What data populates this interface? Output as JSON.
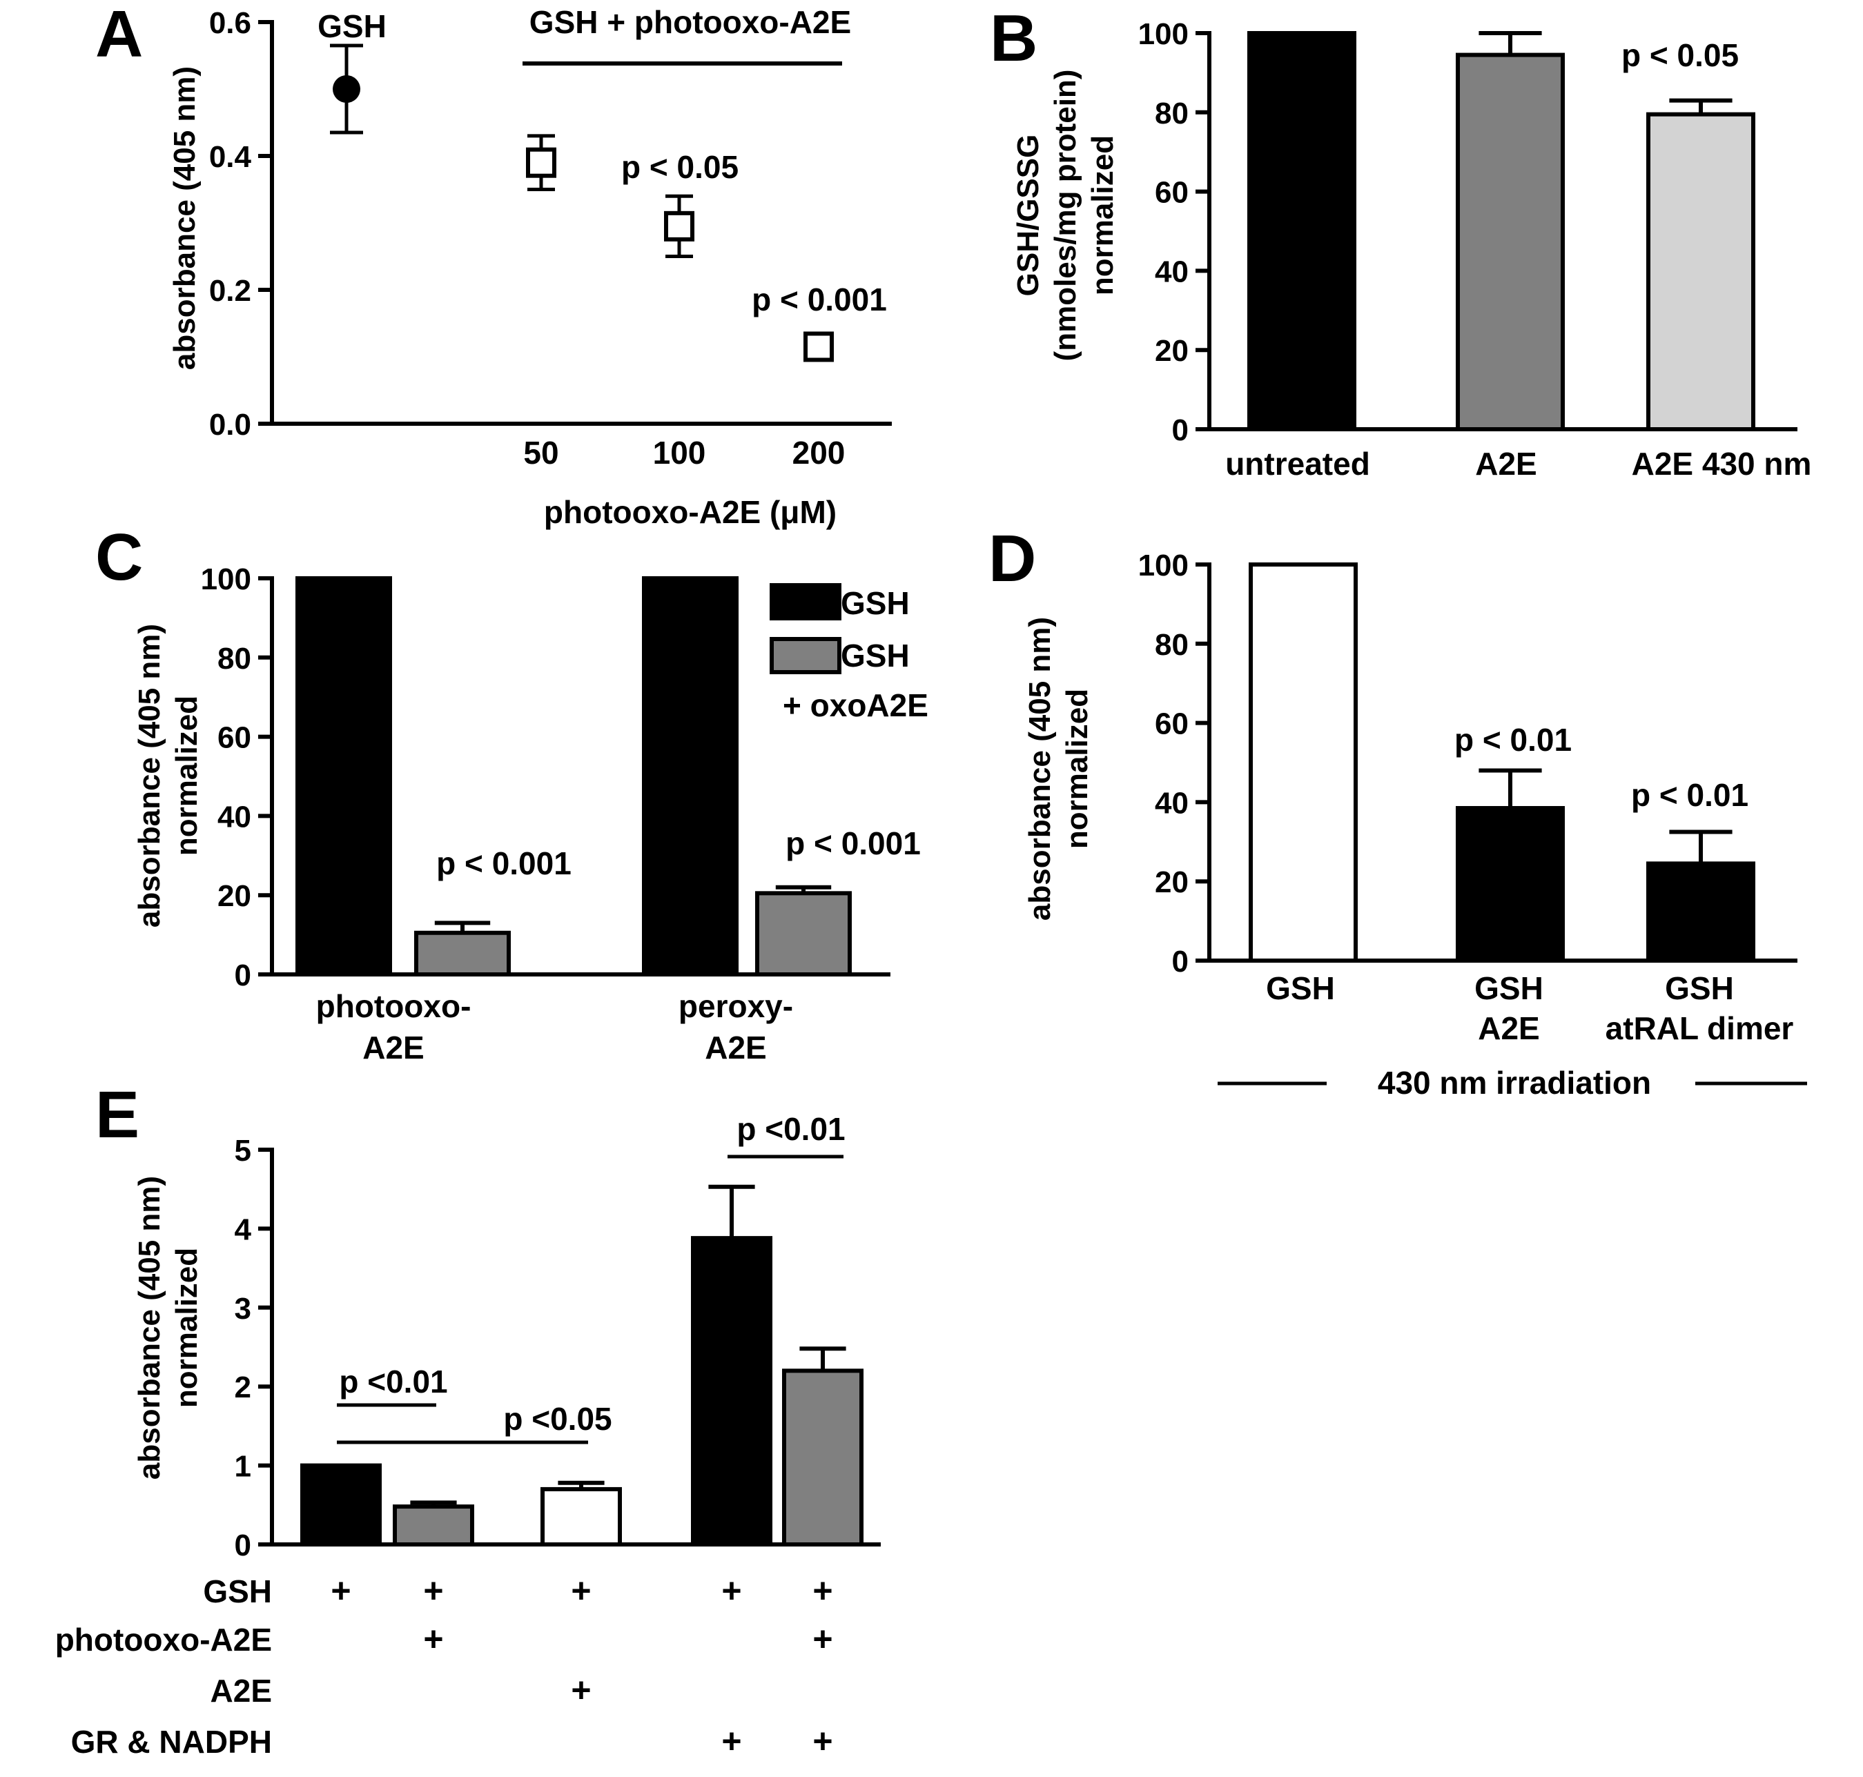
{
  "colors": {
    "black": "#000000",
    "dark_gray": "#808080",
    "light_gray": "#d3d3d3",
    "white": "#ffffff"
  },
  "chart_data": [
    {
      "panel": "A",
      "type": "scatter",
      "ylabel": "absorbance (405 nm)",
      "xlabel": "photooxo-A2E (μM)",
      "ylim": [
        0,
        0.6
      ],
      "yticks": [
        "0.0",
        "0.2",
        "0.4",
        "0.6"
      ],
      "group_label": "GSH + photooxo-A2E",
      "points": [
        {
          "label": "GSH",
          "y": 0.5,
          "err": 0.065,
          "marker": "filled-circle"
        },
        {
          "label": "50",
          "y": 0.39,
          "err": 0.04,
          "marker": "open-square"
        },
        {
          "label": "100",
          "y": 0.295,
          "err": 0.045,
          "marker": "open-square"
        },
        {
          "label": "200",
          "y": 0.115,
          "err": 0.01,
          "marker": "open-square"
        }
      ],
      "annotations": [
        "p < 0.05",
        "p < 0.001"
      ]
    },
    {
      "panel": "B",
      "type": "bar",
      "ylabel_lines": [
        "GSH/GSSG",
        "(nmoles/mg protein)",
        "normalized"
      ],
      "ylim": [
        0,
        100
      ],
      "yticks": [
        "0",
        "20",
        "40",
        "60",
        "80",
        "100"
      ],
      "categories": [
        "untreated",
        "A2E",
        "A2E 430 nm"
      ],
      "values": [
        100,
        94.5,
        79.5
      ],
      "errors": [
        0,
        5.5,
        3.5
      ],
      "colors": [
        "#000000",
        "#808080",
        "#d3d3d3"
      ],
      "annotations": [
        "p < 0.05"
      ]
    },
    {
      "panel": "C",
      "type": "bar",
      "ylabel_lines": [
        "absorbance (405  nm)",
        "normalized"
      ],
      "ylim": [
        0,
        100
      ],
      "yticks": [
        "0",
        "20",
        "40",
        "60",
        "80",
        "100"
      ],
      "categories": [
        [
          "photooxo-",
          "A2E"
        ],
        [
          "peroxy-",
          "A2E"
        ]
      ],
      "series": [
        {
          "name": "GSH",
          "values": [
            100,
            100
          ],
          "errors": [
            0,
            0
          ],
          "color": "#000000"
        },
        {
          "name": "GSH + oxoA2E",
          "name_lines": [
            "GSH",
            "+ oxoA2E"
          ],
          "values": [
            10.5,
            20.5
          ],
          "errors": [
            2.5,
            1.5
          ],
          "color": "#808080"
        }
      ],
      "annotations": [
        "p < 0.001",
        "p < 0.001"
      ]
    },
    {
      "panel": "D",
      "type": "bar",
      "ylabel_lines": [
        "absorbance (405 nm)",
        "normalized"
      ],
      "ylim": [
        0,
        100
      ],
      "yticks": [
        "0",
        "20",
        "40",
        "60",
        "80",
        "100"
      ],
      "categories": [
        [
          "GSH"
        ],
        [
          "GSH",
          "A2E"
        ],
        [
          "GSH",
          "atRAL dimer"
        ]
      ],
      "values": [
        100,
        38.5,
        24.5
      ],
      "errors": [
        0,
        9.5,
        8
      ],
      "colors": [
        "#ffffff",
        "#000000",
        "#000000"
      ],
      "annotations": [
        "p < 0.01",
        "p < 0.01"
      ],
      "footer": "430 nm irradiation"
    },
    {
      "panel": "E",
      "type": "bar",
      "ylabel_lines": [
        "absorbance (405 nm)",
        "normalized"
      ],
      "ylim": [
        0,
        5
      ],
      "yticks": [
        "0",
        "1",
        "2",
        "3",
        "4",
        "5"
      ],
      "values": [
        1.0,
        0.48,
        0.7,
        3.88,
        2.2
      ],
      "errors": [
        0,
        0.05,
        0.08,
        0.65,
        0.28
      ],
      "colors": [
        "#000000",
        "#808080",
        "#ffffff",
        "#000000",
        "#808080"
      ],
      "conditions": [
        {
          "name": "GSH",
          "marks": [
            "+",
            "+",
            "+",
            "+",
            "+"
          ]
        },
        {
          "name": "photooxo-A2E",
          "marks": [
            "",
            "+",
            "",
            "",
            "+"
          ]
        },
        {
          "name": "A2E",
          "marks": [
            "",
            "",
            "+",
            "",
            ""
          ]
        },
        {
          "name": "GR & NADPH",
          "marks": [
            "",
            "",
            "",
            "+",
            "+"
          ]
        }
      ],
      "annotations": [
        "p <0.01",
        "p <0.05",
        "p <0.01"
      ]
    }
  ]
}
